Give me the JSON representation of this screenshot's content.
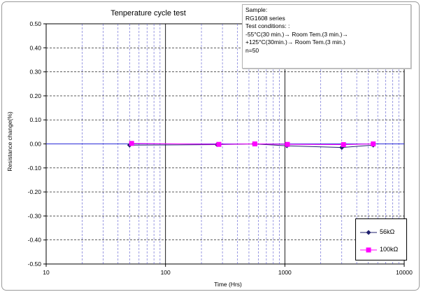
{
  "chart_data": {
    "type": "line",
    "title": "Tenperature cycle test",
    "xlabel": "Time (Hrs)",
    "ylabel": "Resistance change(%)",
    "xscale": "log",
    "xlim": [
      10,
      10000
    ],
    "ylim": [
      -0.5,
      0.5
    ],
    "x_ticks": [
      "10",
      "100",
      "1000",
      "10000"
    ],
    "y_ticks": [
      "0.50",
      "0.40",
      "0.30",
      "0.20",
      "0.10",
      "0.00",
      "-0.10",
      "-0.20",
      "-0.30",
      "-0.40",
      "-0.50"
    ],
    "grid": true,
    "legend_position": "bottom-right",
    "series": [
      {
        "name": "56kΩ",
        "color": "#1f1f6e",
        "marker": "diamond",
        "x": [
          50,
          270,
          550,
          1040,
          3000,
          5500
        ],
        "y": [
          -0.005,
          -0.003,
          0.0,
          -0.008,
          -0.015,
          -0.005
        ]
      },
      {
        "name": "100kΩ",
        "color": "#ff00ff",
        "marker": "square",
        "x": [
          52,
          280,
          560,
          1050,
          3100,
          5500
        ],
        "y": [
          0.002,
          -0.002,
          0.0,
          -0.002,
          -0.003,
          0.0
        ]
      }
    ],
    "annotation": [
      "Sample:",
      "RG1608 series",
      "Test conditions: :",
      "-55°C(30 min.)→ Room Tem.(3 min.)→",
      "+125°C(30min.)→ Room Tem.(3 min.)",
      "n=50"
    ]
  }
}
